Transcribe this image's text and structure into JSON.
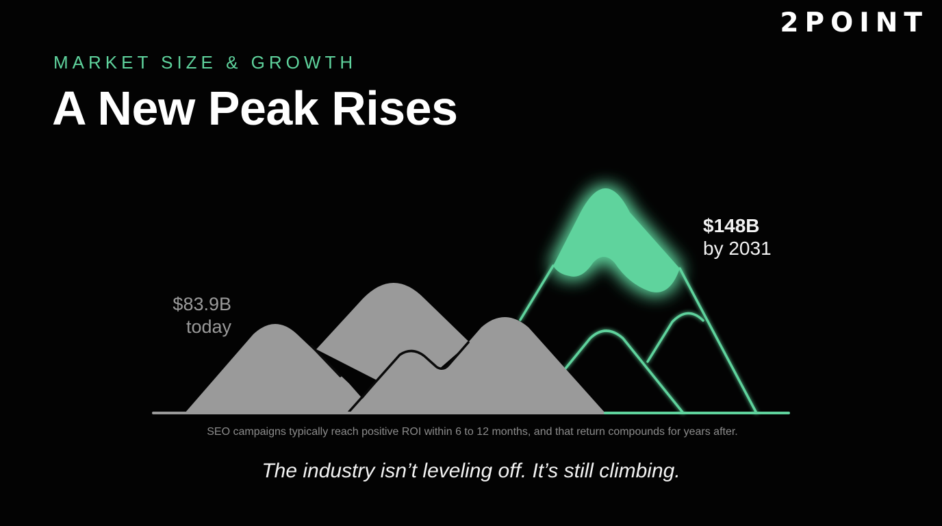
{
  "brand": {
    "logo_text": "2POINT"
  },
  "header": {
    "eyebrow": "MARKET SIZE & GROWTH",
    "title": "A New Peak Rises"
  },
  "callouts": {
    "today": {
      "value": "$83.9B",
      "label": "today"
    },
    "future": {
      "value": "$148B",
      "label": "by 2031"
    }
  },
  "footnote": "SEO campaigns typically reach positive ROI within 6 to 12 months, and that return compounds for years after.",
  "tagline": "The industry isn’t leveling off. It’s still climbing.",
  "colors": {
    "background": "#030303",
    "accent": "#5fd39d",
    "mountain_gray": "#9a9a9a",
    "text": "#ffffff"
  },
  "icons": {
    "current_market": "gray-mountain-range-icon",
    "future_market": "green-peak-mountain-icon"
  }
}
